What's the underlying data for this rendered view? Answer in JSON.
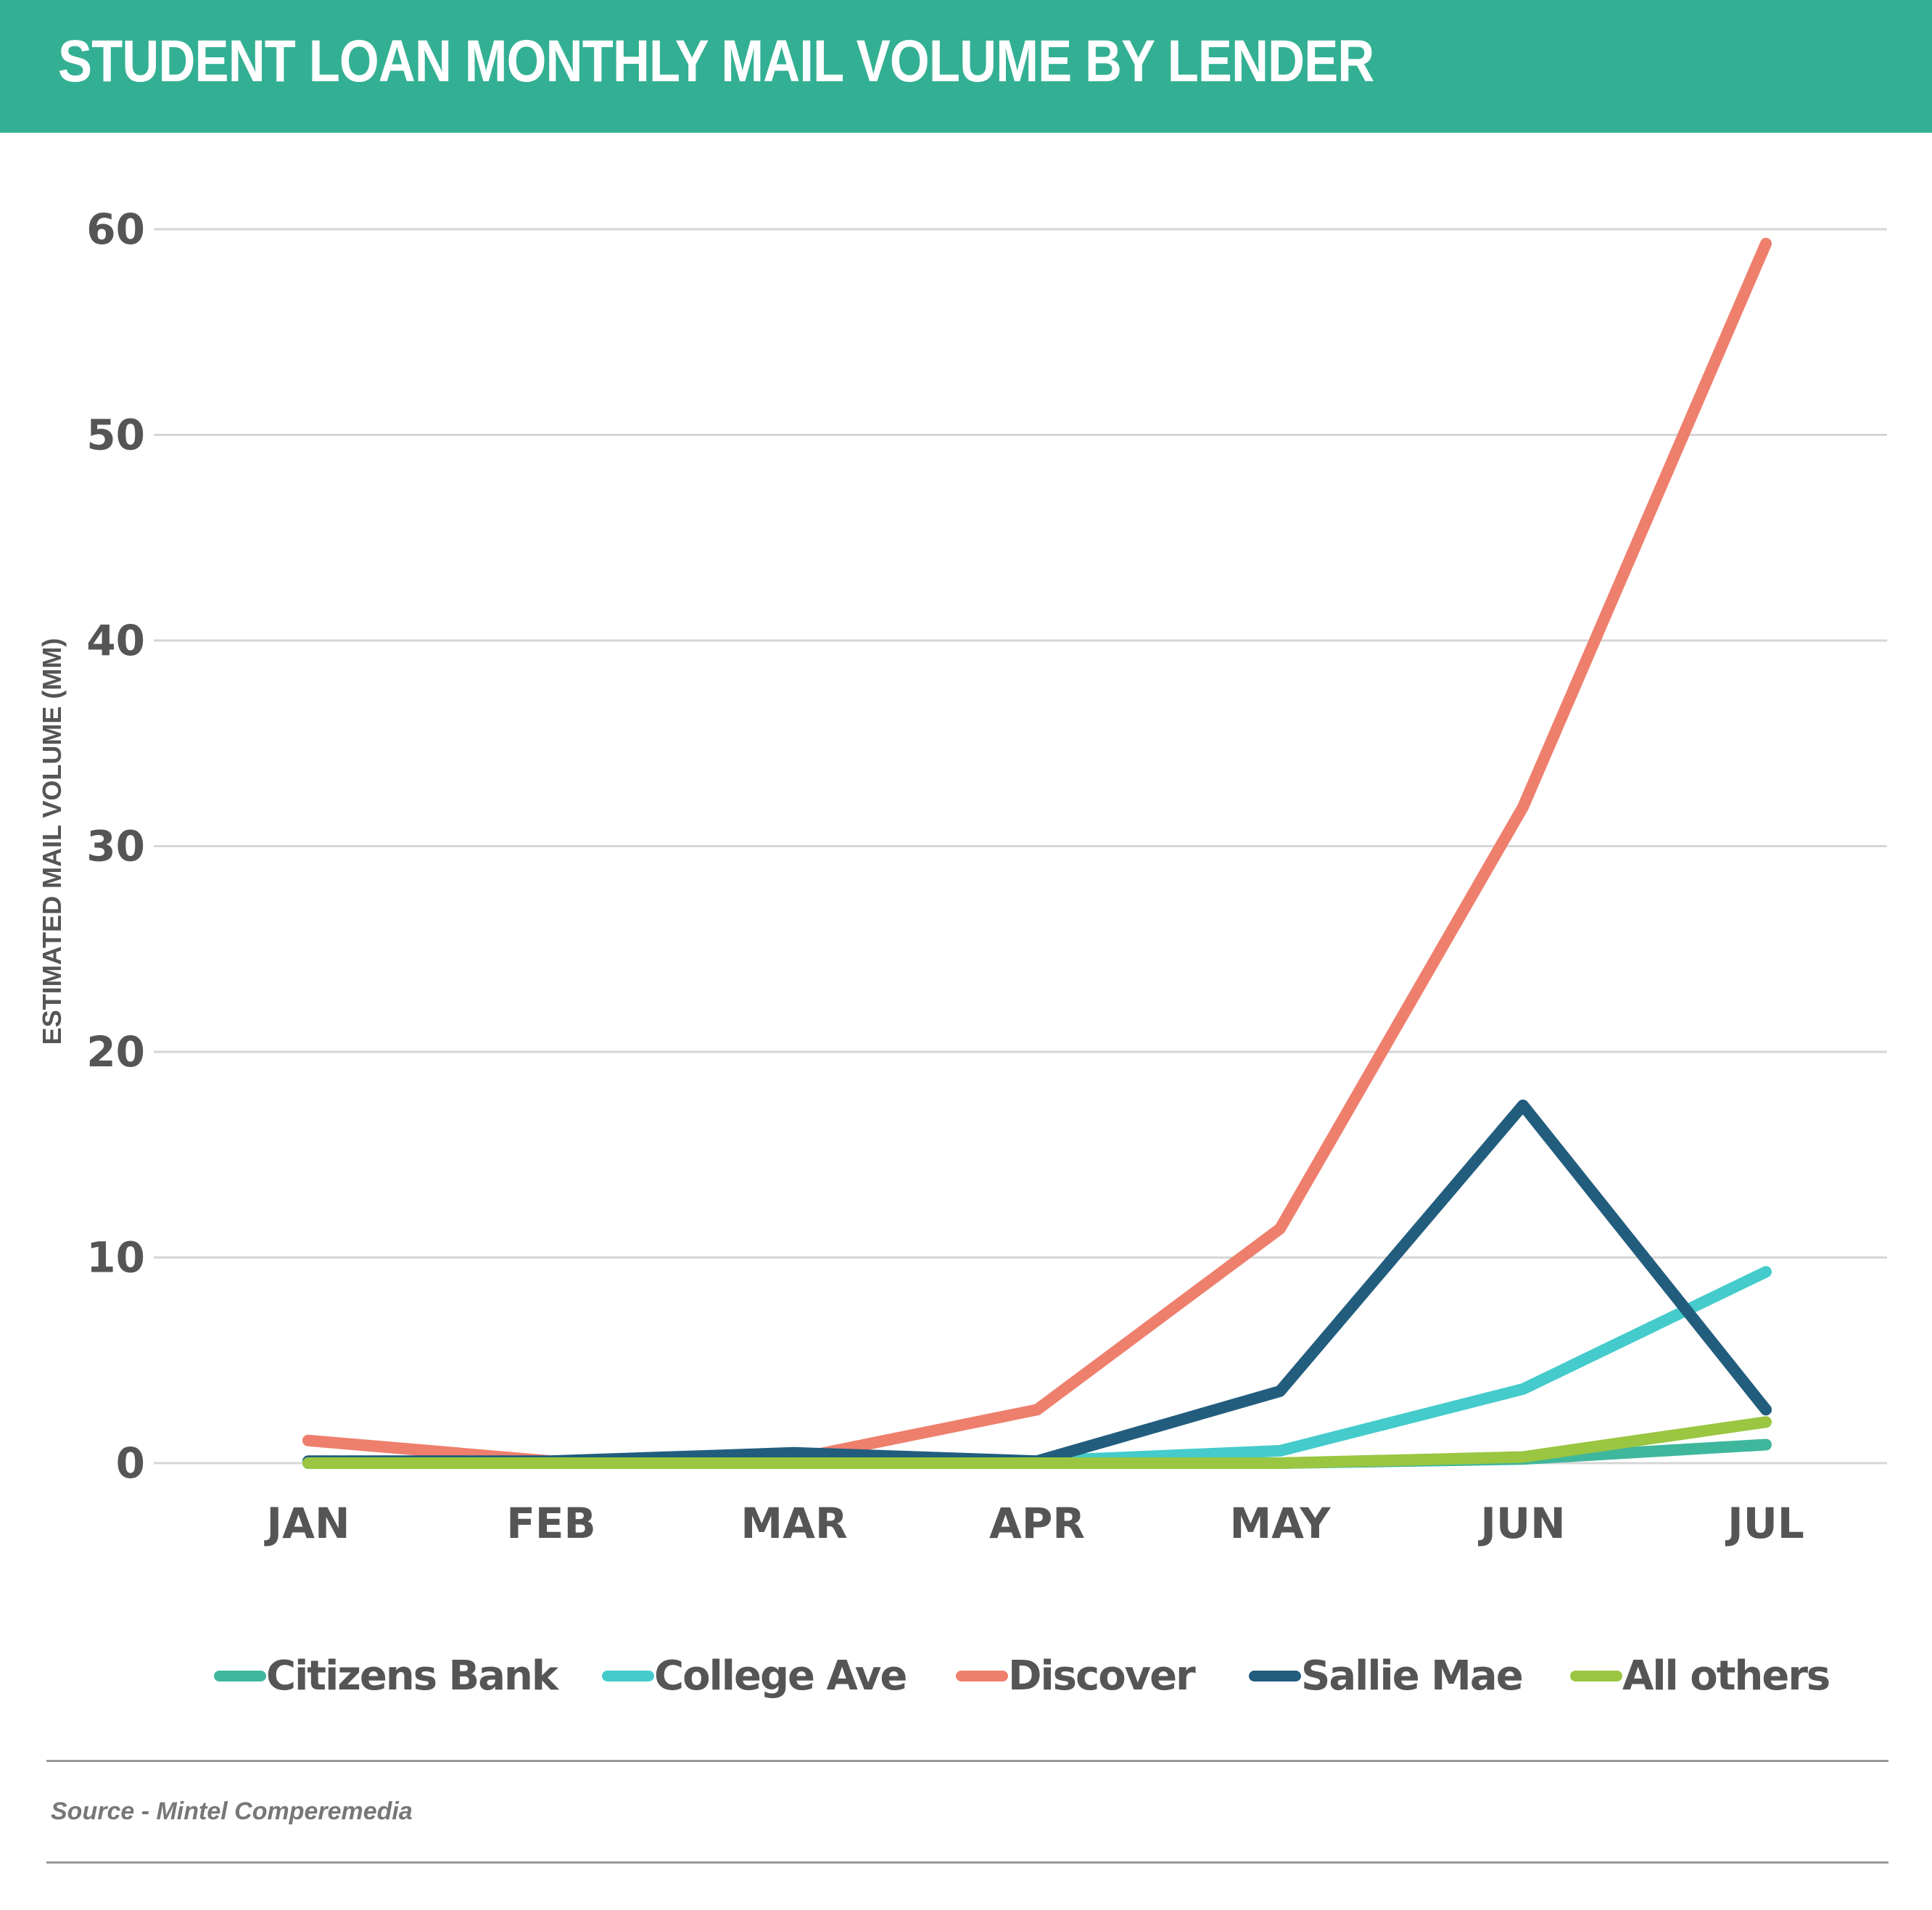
{
  "header": {
    "title": "STUDENT LOAN MONTHLY MAIL VOLUME BY LENDER",
    "background": "#33B093"
  },
  "footer": {
    "source": "Source - Mintel Comperemedia"
  },
  "chart_data": {
    "type": "line",
    "title": "STUDENT LOAN MONTHLY MAIL VOLUME BY LENDER",
    "xlabel": "",
    "ylabel": "ESTIMATED MAIL VOLUME (MM)",
    "categories": [
      "JAN",
      "FEB",
      "MAR",
      "APR",
      "MAY",
      "JUN",
      "JUL"
    ],
    "ylim": [
      0,
      60
    ],
    "yticks": [
      0,
      10,
      20,
      30,
      40,
      50,
      60
    ],
    "grid": true,
    "legend_position": "bottom",
    "series": [
      {
        "name": "Citizens Bank",
        "color": "#3FB79C",
        "values": [
          0,
          0,
          0,
          0,
          0,
          0.2,
          0.9
        ]
      },
      {
        "name": "College Ave",
        "color": "#45CBCB",
        "values": [
          0,
          0,
          0,
          0.1,
          0.6,
          3.6,
          9.3
        ]
      },
      {
        "name": "Discover",
        "color": "#EE7F6D",
        "values": [
          1.1,
          0.1,
          0.2,
          2.6,
          11.4,
          31.9,
          59.3
        ]
      },
      {
        "name": "Sallie Mae",
        "color": "#225D7E",
        "values": [
          0.1,
          0.1,
          0.5,
          0.1,
          3.5,
          17.4,
          2.6
        ]
      },
      {
        "name": "All others",
        "color": "#9AC641",
        "values": [
          0,
          0,
          0,
          0,
          0,
          0.3,
          2.0
        ]
      }
    ],
    "source": "Source - Mintel Comperemedia"
  }
}
